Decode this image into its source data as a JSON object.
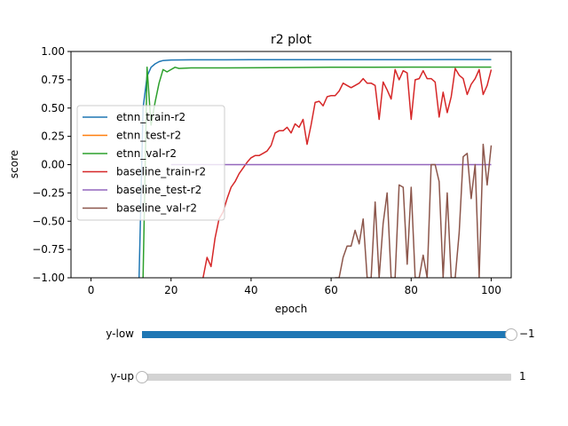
{
  "chart_data": {
    "type": "line",
    "title": "r2 plot",
    "xlabel": "epoch",
    "ylabel": "score",
    "xlim": [
      -5,
      105
    ],
    "ylim": [
      -1.0,
      1.0
    ],
    "xticks": [
      0,
      20,
      40,
      60,
      80,
      100
    ],
    "yticks": [
      -1.0,
      -0.75,
      -0.5,
      -0.25,
      0.0,
      0.25,
      0.5,
      0.75,
      1.0
    ],
    "ytick_labels": [
      "−1.00",
      "−0.75",
      "−0.50",
      "−0.25",
      "0.00",
      "0.25",
      "0.50",
      "0.75",
      "1.00"
    ],
    "legend_position": "center-left",
    "grid": false,
    "series": [
      {
        "name": "etnn_train-r2",
        "color": "#1f77b4",
        "x": [
          12,
          13,
          14,
          15,
          16,
          17,
          18,
          20,
          25,
          30,
          40,
          50,
          60,
          70,
          80,
          90,
          100
        ],
        "y": [
          -1.0,
          0.5,
          0.78,
          0.86,
          0.89,
          0.91,
          0.92,
          0.925,
          0.926,
          0.926,
          0.927,
          0.927,
          0.928,
          0.928,
          0.928,
          0.929,
          0.929
        ]
      },
      {
        "name": "etnn_test-r2",
        "color": "#ff7f0e",
        "x": [],
        "y": []
      },
      {
        "name": "etnn_val-r2",
        "color": "#2ca02c",
        "x": [
          13,
          14,
          15,
          16,
          17,
          18,
          19,
          20,
          21,
          22,
          25,
          30,
          40,
          50,
          60,
          70,
          80,
          90,
          100
        ],
        "y": [
          -1.0,
          0.86,
          0.35,
          0.55,
          0.72,
          0.84,
          0.82,
          0.84,
          0.86,
          0.85,
          0.855,
          0.855,
          0.856,
          0.858,
          0.86,
          0.86,
          0.862,
          0.862,
          0.862
        ]
      },
      {
        "name": "baseline_train-r2",
        "color": "#d62728",
        "x": [
          28,
          29,
          30,
          31,
          32,
          33,
          34,
          35,
          36,
          37,
          38,
          39,
          40,
          41,
          42,
          43,
          44,
          45,
          46,
          47,
          48,
          49,
          50,
          51,
          52,
          53,
          54,
          55,
          56,
          57,
          58,
          59,
          60,
          61,
          62,
          63,
          64,
          65,
          66,
          67,
          68,
          69,
          70,
          71,
          72,
          73,
          74,
          75,
          76,
          77,
          78,
          79,
          80,
          81,
          82,
          83,
          84,
          85,
          86,
          87,
          88,
          89,
          90,
          91,
          92,
          93,
          94,
          95,
          96,
          97,
          98,
          99,
          100
        ],
        "y": [
          -1.0,
          -0.82,
          -0.9,
          -0.65,
          -0.48,
          -0.42,
          -0.3,
          -0.2,
          -0.15,
          -0.08,
          -0.03,
          0.02,
          0.06,
          0.08,
          0.08,
          0.1,
          0.12,
          0.17,
          0.28,
          0.3,
          0.3,
          0.33,
          0.28,
          0.36,
          0.33,
          0.4,
          0.18,
          0.35,
          0.55,
          0.56,
          0.52,
          0.6,
          0.61,
          0.61,
          0.65,
          0.72,
          0.7,
          0.68,
          0.7,
          0.72,
          0.76,
          0.72,
          0.72,
          0.7,
          0.4,
          0.73,
          0.66,
          0.58,
          0.84,
          0.75,
          0.83,
          0.81,
          0.4,
          0.75,
          0.76,
          0.83,
          0.76,
          0.76,
          0.73,
          0.42,
          0.64,
          0.46,
          0.6,
          0.85,
          0.79,
          0.76,
          0.62,
          0.71,
          0.76,
          0.84,
          0.62,
          0.7,
          0.84
        ]
      },
      {
        "name": "baseline_test-r2",
        "color": "#9467bd",
        "x": [
          20,
          100
        ],
        "y": [
          0.0,
          0.0
        ]
      },
      {
        "name": "baseline_val-r2",
        "color": "#8c564b",
        "x": [
          61,
          62,
          63,
          64,
          65,
          66,
          67,
          68,
          69,
          70,
          71,
          72,
          73,
          74,
          75,
          76,
          77,
          78,
          79,
          80,
          81,
          82,
          83,
          84,
          85,
          86,
          87,
          88,
          89,
          90,
          91,
          92,
          93,
          94,
          95,
          96,
          97,
          98,
          99,
          100
        ],
        "y": [
          -1.0,
          -1.0,
          -0.82,
          -0.72,
          -0.72,
          -0.58,
          -0.7,
          -0.48,
          -1.0,
          -1.0,
          -0.33,
          -1.0,
          -0.52,
          -0.25,
          -1.0,
          -1.0,
          -0.18,
          -0.2,
          -0.88,
          -0.2,
          -1.0,
          -1.0,
          -0.8,
          -1.0,
          0.0,
          0.0,
          -0.15,
          -1.0,
          -0.25,
          -1.0,
          -1.0,
          -0.6,
          0.07,
          0.1,
          -0.3,
          0.0,
          -1.0,
          0.18,
          -0.18,
          0.17
        ]
      }
    ]
  },
  "sliders": [
    {
      "label": "y-low",
      "value_text": "−1",
      "fraction": 1.0,
      "fill_color": "#1f77b4",
      "track_color": "#d3d3d3"
    },
    {
      "label": "y-up",
      "value_text": "1",
      "fraction": 0.0,
      "fill_color": "#1f77b4",
      "track_color": "#d3d3d3"
    }
  ]
}
